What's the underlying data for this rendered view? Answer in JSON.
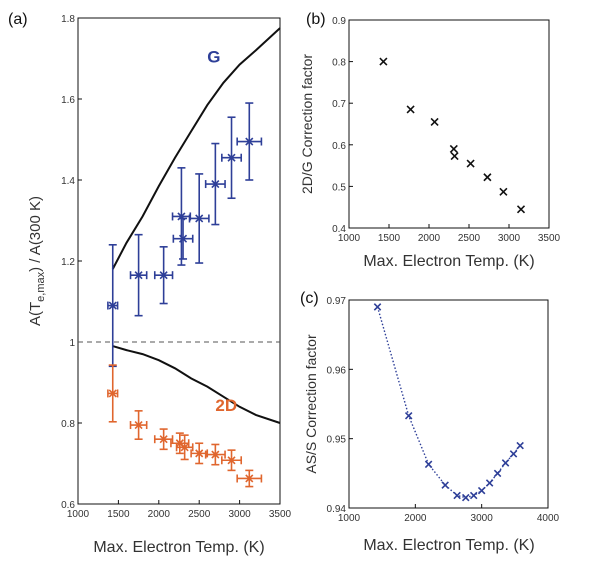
{
  "colors": {
    "blue": "#2e3f98",
    "orange": "#e0662e",
    "black": "#111111",
    "dotted": "#2e3f98"
  },
  "chart_data": [
    {
      "panel": "(a)",
      "type": "scatter",
      "xlabel": "Max. Electron Temp. (K)",
      "ylabel": "A(T_e,max) / A(300 K)",
      "ylabel_main": "A(T",
      "ylabel_sub": "e,max",
      "ylabel_rest": ") / A(300 K)",
      "xlim": [
        1000,
        3500
      ],
      "ylim": [
        0.6,
        1.8
      ],
      "xticks": [
        1000,
        1500,
        2000,
        2500,
        3000,
        3500
      ],
      "yticks": [
        0.6,
        0.8,
        1,
        1.2,
        1.4,
        1.6,
        1.8
      ],
      "ytick_labels": [
        "0.6",
        "0.8",
        "1",
        "1.2",
        "1.4",
        "1.6",
        "1.8"
      ],
      "reference_line": {
        "y": 1.0,
        "style": "dashed"
      },
      "annotations": [
        {
          "text": "G",
          "x": 2600,
          "y": 1.69,
          "color": "blue"
        },
        {
          "text": "2D",
          "x": 2700,
          "y": 0.83,
          "color": "orange"
        }
      ],
      "series": [
        {
          "label": "G",
          "color": "blue",
          "points": [
            {
              "x": 1430,
              "y": 1.09,
              "xerr": 60,
              "yerr": 0.15
            },
            {
              "x": 1750,
              "y": 1.165,
              "xerr": 100,
              "yerr": 0.1
            },
            {
              "x": 2060,
              "y": 1.165,
              "xerr": 110,
              "yerr": 0.07
            },
            {
              "x": 2280,
              "y": 1.31,
              "xerr": 110,
              "yerr": 0.12
            },
            {
              "x": 2300,
              "y": 1.255,
              "xerr": 120,
              "yerr": 0.05
            },
            {
              "x": 2500,
              "y": 1.305,
              "xerr": 120,
              "yerr": 0.11
            },
            {
              "x": 2700,
              "y": 1.39,
              "xerr": 120,
              "yerr": 0.1
            },
            {
              "x": 2900,
              "y": 1.455,
              "xerr": 120,
              "yerr": 0.1
            },
            {
              "x": 3120,
              "y": 1.495,
              "xerr": 150,
              "yerr": 0.095
            }
          ]
        },
        {
          "label": "2D",
          "color": "orange",
          "points": [
            {
              "x": 1430,
              "y": 0.873,
              "xerr": 60,
              "yerr": 0.07
            },
            {
              "x": 1750,
              "y": 0.795,
              "xerr": 100,
              "yerr": 0.035
            },
            {
              "x": 2060,
              "y": 0.76,
              "xerr": 110,
              "yerr": 0.025
            },
            {
              "x": 2260,
              "y": 0.75,
              "xerr": 110,
              "yerr": 0.025
            },
            {
              "x": 2320,
              "y": 0.74,
              "xerr": 100,
              "yerr": 0.03
            },
            {
              "x": 2500,
              "y": 0.725,
              "xerr": 100,
              "yerr": 0.025
            },
            {
              "x": 2700,
              "y": 0.722,
              "xerr": 120,
              "yerr": 0.025
            },
            {
              "x": 2900,
              "y": 0.708,
              "xerr": 120,
              "yerr": 0.025
            },
            {
              "x": 3120,
              "y": 0.663,
              "xerr": 150,
              "yerr": 0.02
            }
          ]
        }
      ],
      "curves": [
        {
          "name": "G model",
          "x": [
            1430,
            1600,
            1800,
            2000,
            2200,
            2400,
            2600,
            2800,
            3000,
            3200,
            3500
          ],
          "y": [
            1.18,
            1.245,
            1.31,
            1.385,
            1.455,
            1.52,
            1.585,
            1.64,
            1.685,
            1.72,
            1.775
          ]
        },
        {
          "name": "2D model",
          "x": [
            1430,
            1600,
            1800,
            2000,
            2200,
            2400,
            2600,
            2800,
            3000,
            3200,
            3500
          ],
          "y": [
            0.99,
            0.98,
            0.97,
            0.955,
            0.935,
            0.91,
            0.89,
            0.865,
            0.84,
            0.82,
            0.8
          ]
        }
      ]
    },
    {
      "panel": "(b)",
      "type": "scatter",
      "xlabel": "Max. Electron Temp. (K)",
      "ylabel": "2D/G Correction factor",
      "xlim": [
        1000,
        3500
      ],
      "ylim": [
        0.4,
        0.9
      ],
      "xticks": [
        1000,
        1500,
        2000,
        2500,
        3000,
        3500
      ],
      "yticks": [
        0.4,
        0.5,
        0.6,
        0.7,
        0.8,
        0.9
      ],
      "ytick_labels": [
        "0.4",
        "0.5",
        "0.6",
        "0.7",
        "0.8",
        "0.9"
      ],
      "x": [
        1430,
        1770,
        2070,
        2310,
        2320,
        2520,
        2730,
        2930,
        3150
      ],
      "y": [
        0.8,
        0.685,
        0.655,
        0.59,
        0.573,
        0.555,
        0.522,
        0.487,
        0.445
      ]
    },
    {
      "panel": "(c)",
      "type": "line",
      "xlabel": "Max. Electron Temp. (K)",
      "ylabel": "AS/S Correction factor",
      "xlim": [
        1000,
        4000
      ],
      "ylim": [
        0.94,
        0.97
      ],
      "xticks": [
        1000,
        2000,
        3000,
        4000
      ],
      "yticks": [
        0.94,
        0.95,
        0.96,
        0.97
      ],
      "ytick_labels": [
        "0.94",
        "0.95",
        "0.96",
        "0.97"
      ],
      "x": [
        1430,
        1900,
        2200,
        2450,
        2630,
        2760,
        2880,
        3000,
        3120,
        3240,
        3360,
        3480,
        3580
      ],
      "y": [
        0.969,
        0.9533,
        0.9463,
        0.9433,
        0.9418,
        0.9415,
        0.9418,
        0.9425,
        0.9436,
        0.945,
        0.9465,
        0.9478,
        0.949
      ]
    }
  ]
}
